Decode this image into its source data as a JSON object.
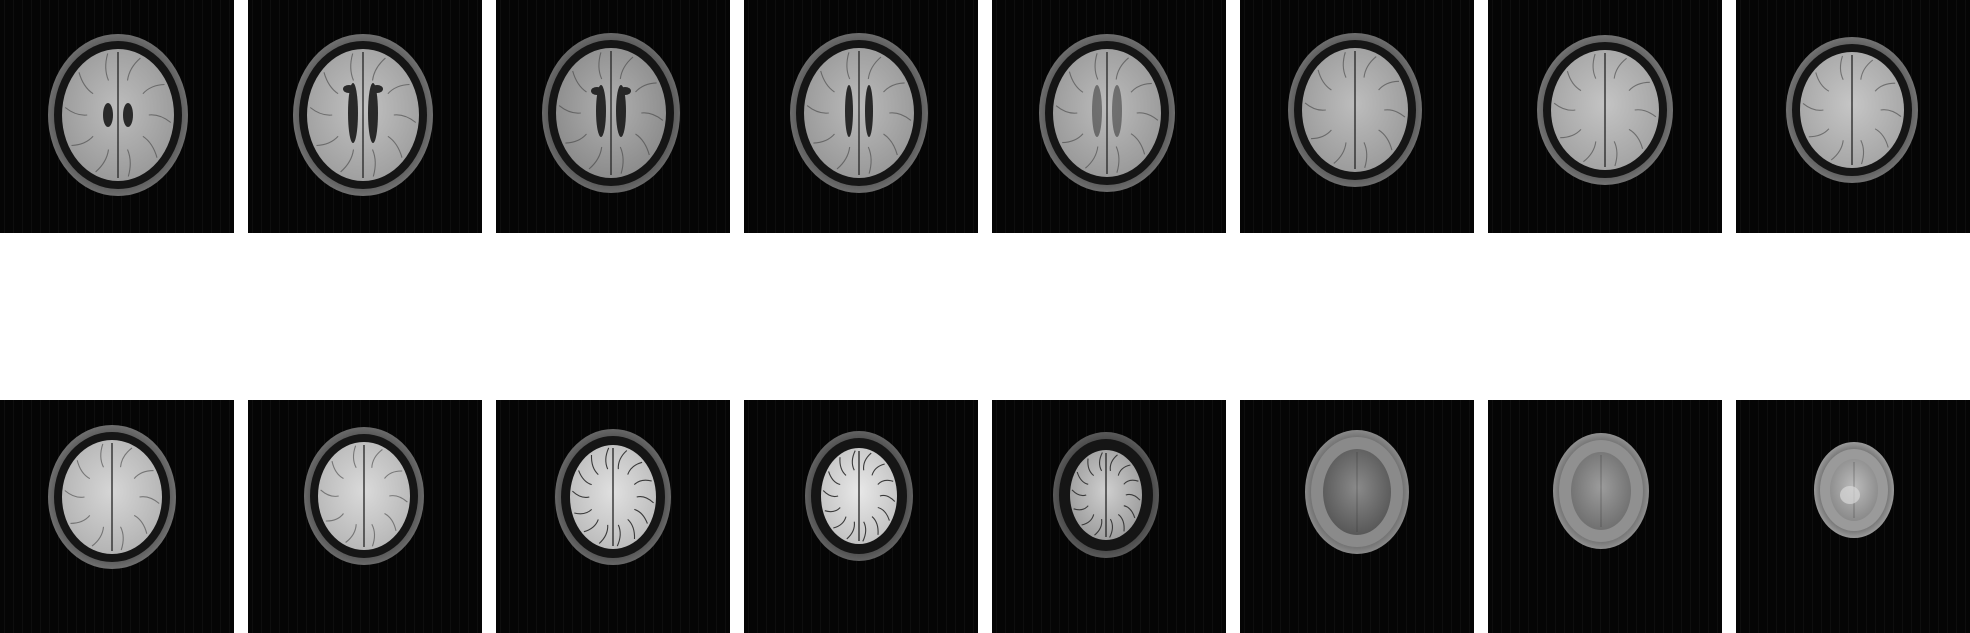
{
  "figure": {
    "background_color": "#ffffff",
    "tile_background_color": "#050505",
    "rows": [
      {
        "row_index": 1,
        "slices": [
          {
            "slice": 1,
            "contrast": "flair-mid",
            "ventricles": "atrial"
          },
          {
            "slice": 2,
            "contrast": "flair-mid",
            "ventricles": "full"
          },
          {
            "slice": 3,
            "contrast": "flair-mid",
            "ventricles": "bodies"
          },
          {
            "slice": 4,
            "contrast": "flair-mid",
            "ventricles": "upper-bodies"
          },
          {
            "slice": 5,
            "contrast": "flair-mid",
            "ventricles": "faint"
          },
          {
            "slice": 6,
            "contrast": "flair-mid",
            "ventricles": "none"
          },
          {
            "slice": 7,
            "contrast": "flair-mid",
            "ventricles": "none"
          },
          {
            "slice": 8,
            "contrast": "flair-mid",
            "ventricles": "none"
          }
        ]
      },
      {
        "row_index": 2,
        "slices": [
          {
            "slice": 9,
            "contrast": "flair-bright",
            "ventricles": "none"
          },
          {
            "slice": 10,
            "contrast": "flair-bright",
            "ventricles": "none"
          },
          {
            "slice": 11,
            "contrast": "vertex",
            "ventricles": "none"
          },
          {
            "slice": 12,
            "contrast": "vertex",
            "ventricles": "none"
          },
          {
            "slice": 13,
            "contrast": "vertex-faint",
            "ventricles": "none"
          },
          {
            "slice": 14,
            "contrast": "scalp-only",
            "ventricles": "none"
          },
          {
            "slice": 15,
            "contrast": "scalp-only",
            "ventricles": "none"
          },
          {
            "slice": 16,
            "contrast": "scalp-only",
            "ventricles": "none"
          }
        ]
      }
    ]
  }
}
